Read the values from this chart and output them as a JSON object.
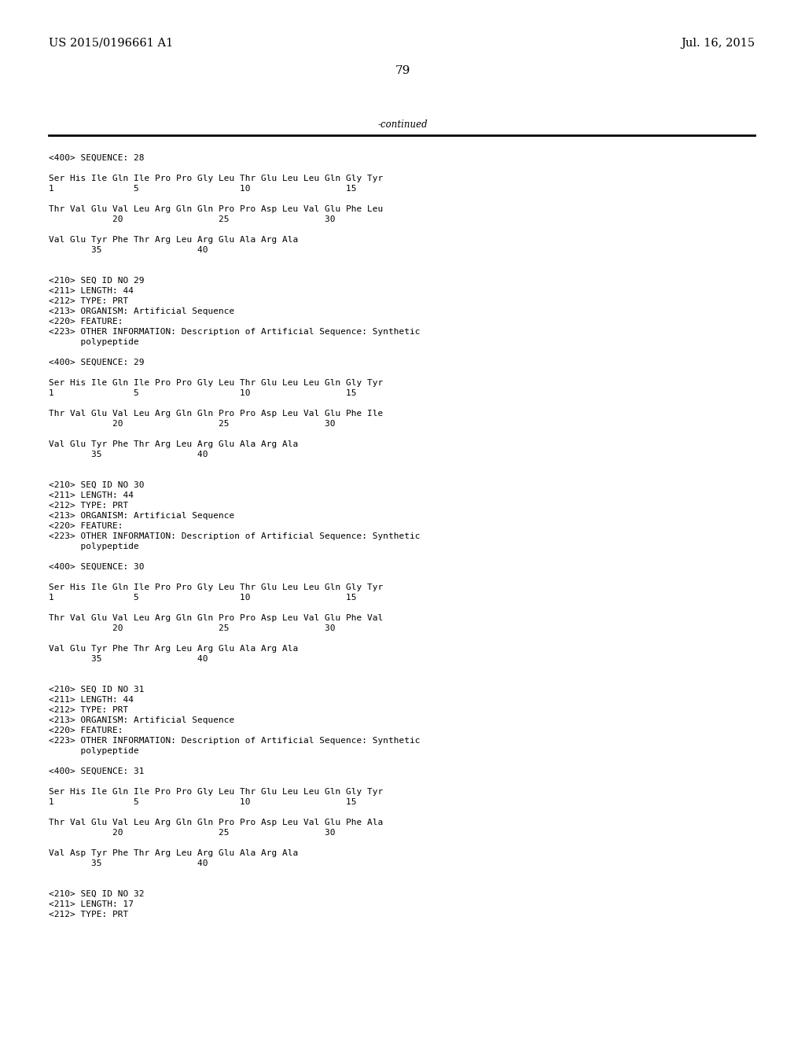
{
  "background_color": "#ffffff",
  "header_left": "US 2015/0196661 A1",
  "header_right": "Jul. 16, 2015",
  "page_number": "79",
  "continued_text": "-continued",
  "font_size": 8.0,
  "header_font_size": 10.5,
  "page_num_font_size": 11,
  "content": [
    "<400> SEQUENCE: 28",
    "",
    "Ser His Ile Gln Ile Pro Pro Gly Leu Thr Glu Leu Leu Gln Gly Tyr",
    "1               5                   10                  15",
    "",
    "Thr Val Glu Val Leu Arg Gln Gln Pro Pro Asp Leu Val Glu Phe Leu",
    "            20                  25                  30",
    "",
    "Val Glu Tyr Phe Thr Arg Leu Arg Glu Ala Arg Ala",
    "        35                  40",
    "",
    "",
    "<210> SEQ ID NO 29",
    "<211> LENGTH: 44",
    "<212> TYPE: PRT",
    "<213> ORGANISM: Artificial Sequence",
    "<220> FEATURE:",
    "<223> OTHER INFORMATION: Description of Artificial Sequence: Synthetic",
    "      polypeptide",
    "",
    "<400> SEQUENCE: 29",
    "",
    "Ser His Ile Gln Ile Pro Pro Gly Leu Thr Glu Leu Leu Gln Gly Tyr",
    "1               5                   10                  15",
    "",
    "Thr Val Glu Val Leu Arg Gln Gln Pro Pro Asp Leu Val Glu Phe Ile",
    "            20                  25                  30",
    "",
    "Val Glu Tyr Phe Thr Arg Leu Arg Glu Ala Arg Ala",
    "        35                  40",
    "",
    "",
    "<210> SEQ ID NO 30",
    "<211> LENGTH: 44",
    "<212> TYPE: PRT",
    "<213> ORGANISM: Artificial Sequence",
    "<220> FEATURE:",
    "<223> OTHER INFORMATION: Description of Artificial Sequence: Synthetic",
    "      polypeptide",
    "",
    "<400> SEQUENCE: 30",
    "",
    "Ser His Ile Gln Ile Pro Pro Gly Leu Thr Glu Leu Leu Gln Gly Tyr",
    "1               5                   10                  15",
    "",
    "Thr Val Glu Val Leu Arg Gln Gln Pro Pro Asp Leu Val Glu Phe Val",
    "            20                  25                  30",
    "",
    "Val Glu Tyr Phe Thr Arg Leu Arg Glu Ala Arg Ala",
    "        35                  40",
    "",
    "",
    "<210> SEQ ID NO 31",
    "<211> LENGTH: 44",
    "<212> TYPE: PRT",
    "<213> ORGANISM: Artificial Sequence",
    "<220> FEATURE:",
    "<223> OTHER INFORMATION: Description of Artificial Sequence: Synthetic",
    "      polypeptide",
    "",
    "<400> SEQUENCE: 31",
    "",
    "Ser His Ile Gln Ile Pro Pro Gly Leu Thr Glu Leu Leu Gln Gly Tyr",
    "1               5                   10                  15",
    "",
    "Thr Val Glu Val Leu Arg Gln Gln Pro Pro Asp Leu Val Glu Phe Ala",
    "            20                  25                  30",
    "",
    "Val Asp Tyr Phe Thr Arg Leu Arg Glu Ala Arg Ala",
    "        35                  40",
    "",
    "",
    "<210> SEQ ID NO 32",
    "<211> LENGTH: 17",
    "<212> TYPE: PRT"
  ]
}
